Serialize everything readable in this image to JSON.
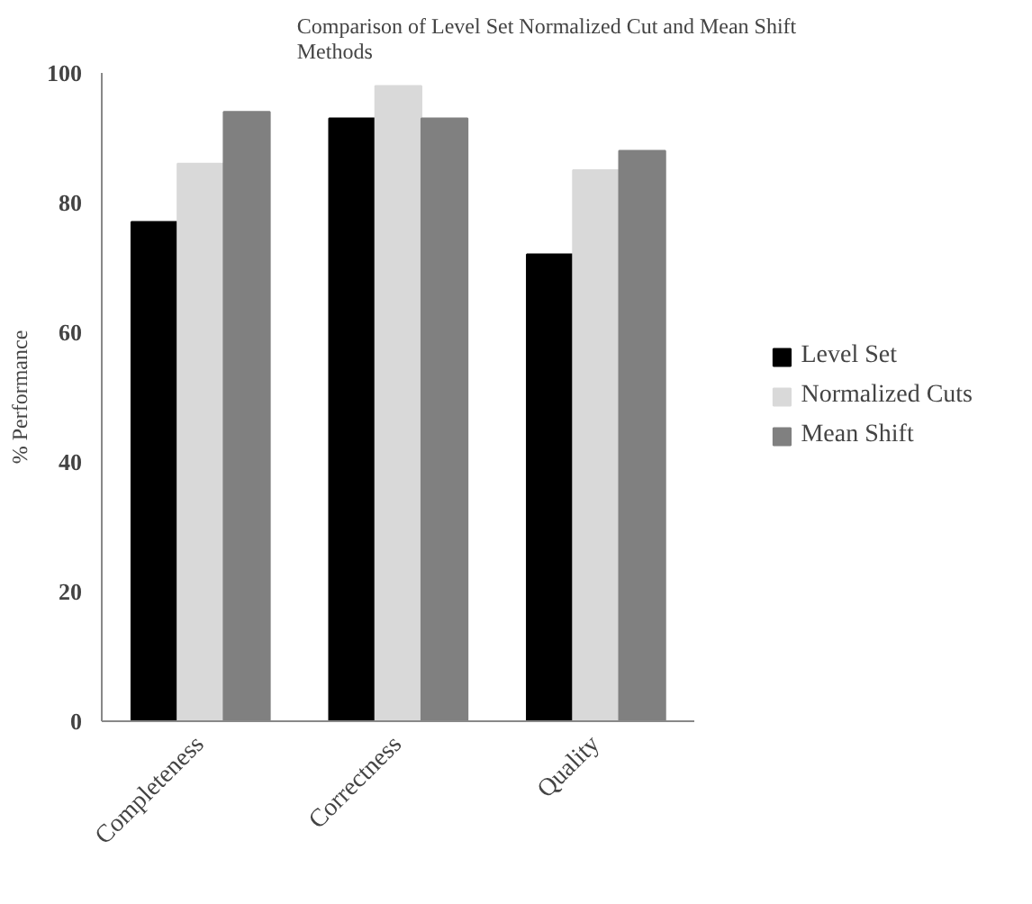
{
  "chart_data": {
    "type": "bar",
    "title": "Comparison of Level Set Normalized Cut and Mean Shift\nMethods",
    "ylabel": "% Performance",
    "categories": [
      "Completeness",
      "Correctness",
      "Quality"
    ],
    "series": [
      {
        "name": "Level Set",
        "color": "#000000",
        "values": [
          77,
          93,
          72
        ]
      },
      {
        "name": "Normalized Cuts",
        "color": "#d9d9d9",
        "values": [
          86,
          98,
          85
        ]
      },
      {
        "name": "Mean Shift",
        "color": "#808080",
        "values": [
          94,
          93,
          88
        ]
      }
    ],
    "ylim": [
      0,
      100
    ],
    "yticks": [
      0,
      20,
      40,
      60,
      80,
      100
    ],
    "grid": false,
    "legend": "right"
  }
}
